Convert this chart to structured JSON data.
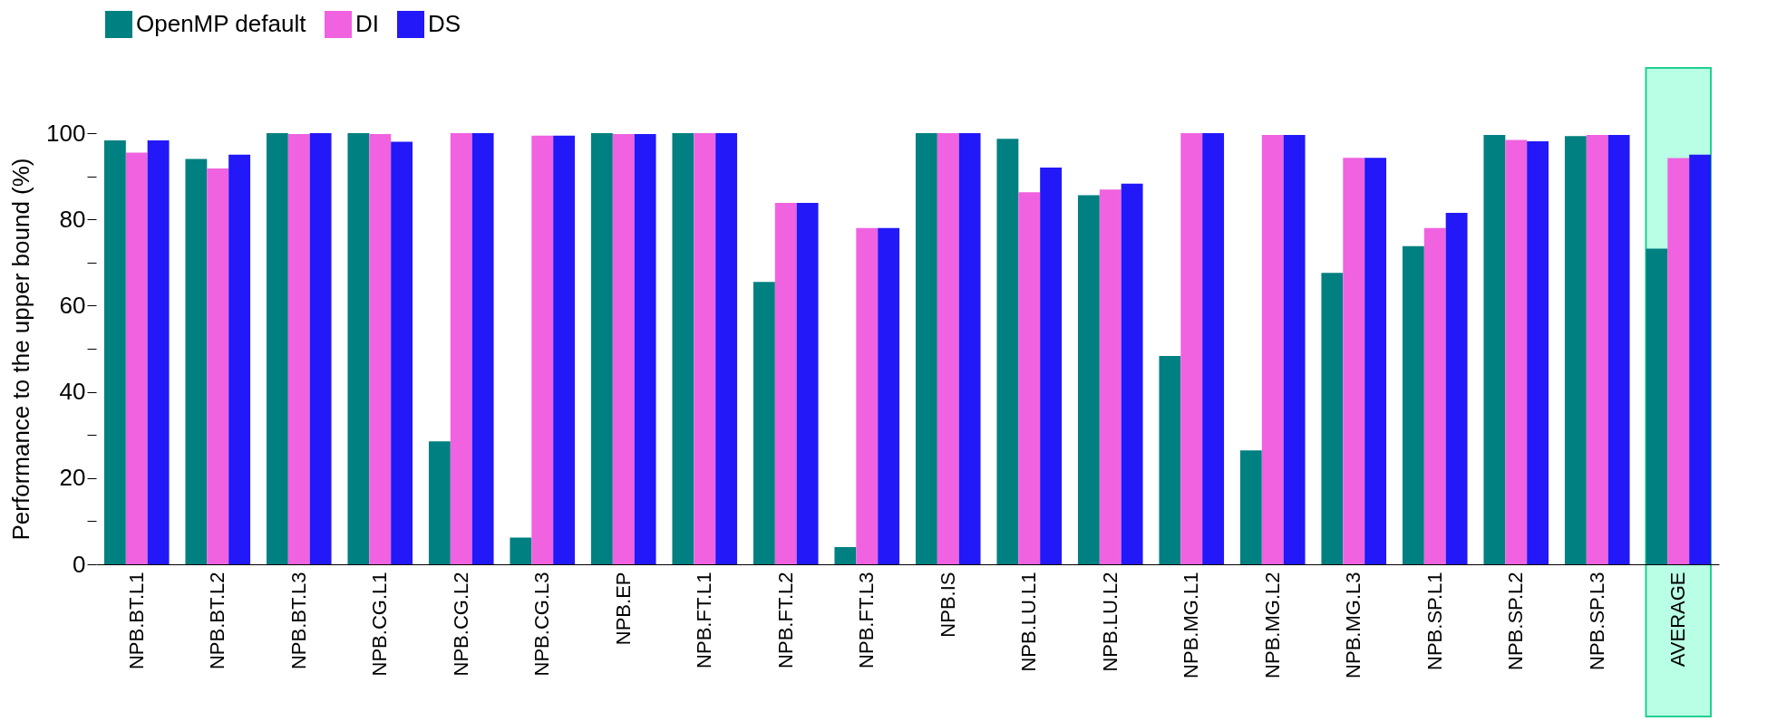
{
  "chart_data": {
    "type": "bar",
    "ylabel": "Performance to the upper bound (%)",
    "categories": [
      "NPB.BT.L1",
      "NPB.BT.L2",
      "NPB.BT.L3",
      "NPB.CG.L1",
      "NPB.CG.L2",
      "NPB.CG.L3",
      "NPB.EP",
      "NPB.FT.L1",
      "NPB.FT.L2",
      "NPB.FT.L3",
      "NPB.IS",
      "NPB.LU.L1",
      "NPB.LU.L2",
      "NPB.MG.L1",
      "NPB.MG.L2",
      "NPB.MG.L3",
      "NPB.SP.L1",
      "NPB.SP.L2",
      "NPB.SP.L3",
      "AVERAGE"
    ],
    "series": [
      {
        "name": "OpenMP default",
        "color": "#008080",
        "values": [
          98.3,
          94,
          100,
          100,
          28.5,
          6.2,
          100,
          100,
          65.5,
          4,
          100,
          98.7,
          85.6,
          48.3,
          26.4,
          67.6,
          73.8,
          99.6,
          99.3,
          73.2
        ]
      },
      {
        "name": "DI",
        "color": "#f062e0",
        "values": [
          95.5,
          91.8,
          99.8,
          99.8,
          100,
          99.4,
          99.8,
          100,
          83.8,
          78,
          100,
          86.3,
          86.9,
          100,
          99.6,
          94.3,
          78,
          98.4,
          99.6,
          94.2
        ]
      },
      {
        "name": "DS",
        "color": "#2218f8",
        "values": [
          98.3,
          95,
          100,
          98,
          100,
          99.4,
          99.8,
          100,
          83.8,
          78,
          100,
          92,
          88.3,
          100,
          99.6,
          94.3,
          81.5,
          98.1,
          99.6,
          95
        ]
      }
    ],
    "ylim": [
      0,
      100
    ],
    "yticks": [
      0,
      {
        "value": 10,
        "label": null
      },
      20,
      {
        "value": 30,
        "label": null
      },
      40,
      {
        "value": 50,
        "label": null
      },
      60,
      {
        "value": 70,
        "label": null
      },
      80,
      {
        "value": 90,
        "label": null
      },
      100
    ],
    "bands": [
      {
        "axis": "x",
        "from": "AVERAGE",
        "to": "AVERAGE",
        "color": "#a8ffe0"
      }
    ],
    "grid": false,
    "legend": "top left"
  }
}
